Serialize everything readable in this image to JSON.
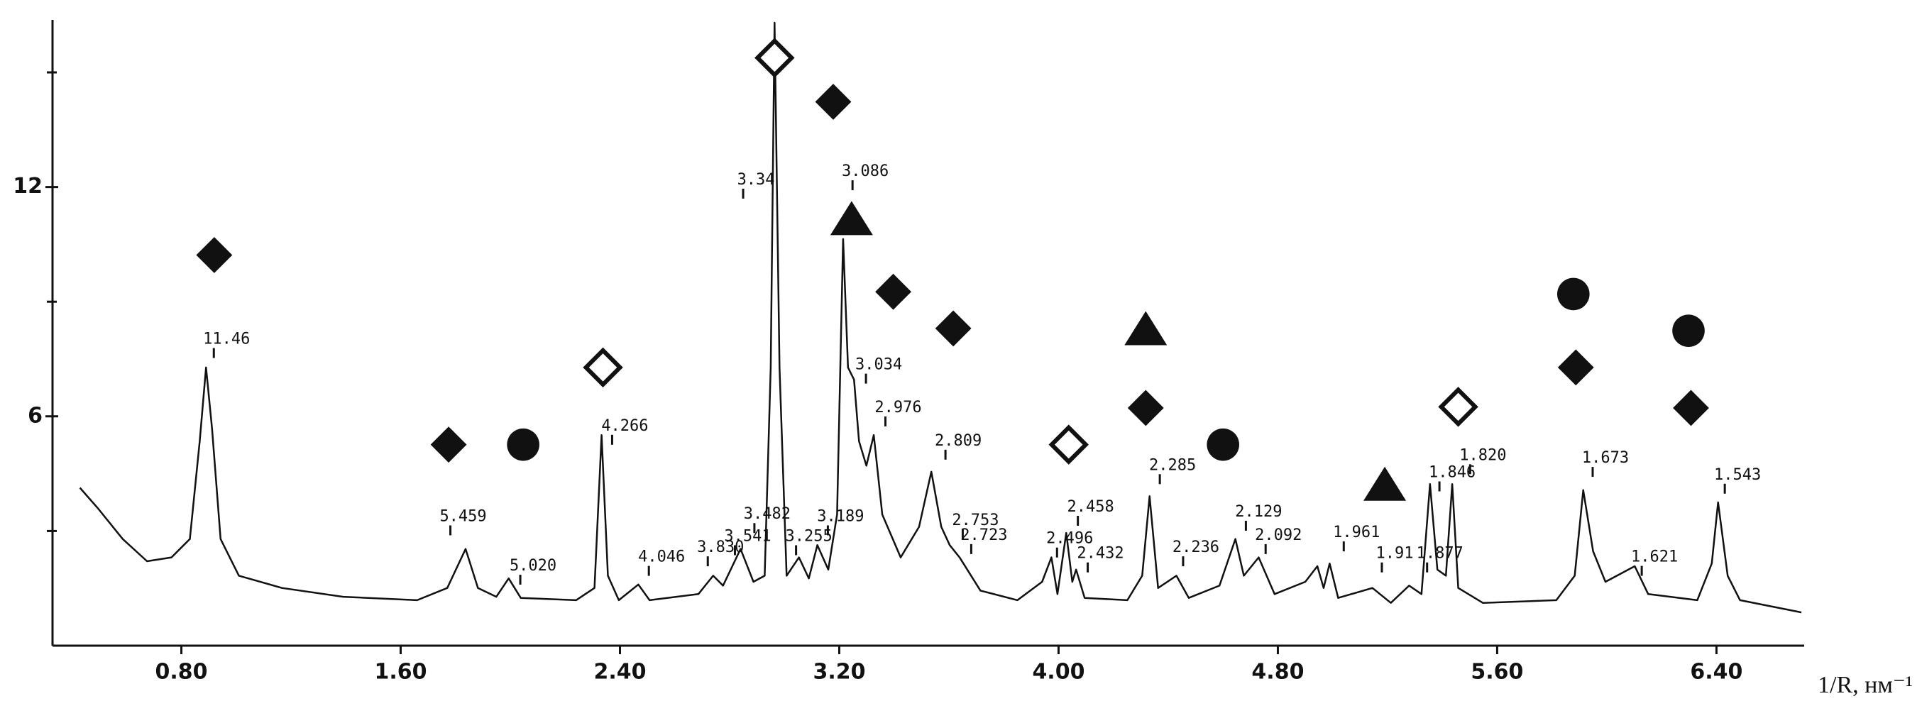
{
  "chart_data": {
    "type": "line",
    "x_label": "1/R, нм⁻¹",
    "color": "#111111",
    "xlim": [
      0.33,
      6.72
    ],
    "ylim": [
      0,
      16.3
    ],
    "xticks": [
      {
        "value": 0.8,
        "label": "0.80"
      },
      {
        "value": 1.6,
        "label": "1.60"
      },
      {
        "value": 2.4,
        "label": "2.40"
      },
      {
        "value": 3.2,
        "label": "3.20"
      },
      {
        "value": 4.0,
        "label": "4.00"
      },
      {
        "value": 4.8,
        "label": "4.80"
      },
      {
        "value": 5.6,
        "label": "5.60"
      },
      {
        "value": 6.4,
        "label": "6.40"
      }
    ],
    "yticks": [
      6,
      12
    ],
    "minor_yticks": [
      3,
      9,
      15
    ],
    "x": [
      0.43,
      0.496,
      0.586,
      0.675,
      0.764,
      0.831,
      0.867,
      0.89,
      0.912,
      0.943,
      1.01,
      1.167,
      1.39,
      1.66,
      1.77,
      1.837,
      1.882,
      1.949,
      1.994,
      2.038,
      2.24,
      2.307,
      2.333,
      2.356,
      2.396,
      2.467,
      2.508,
      2.686,
      2.74,
      2.776,
      2.81,
      2.84,
      2.887,
      2.928,
      2.95,
      2.964,
      2.982,
      3.008,
      3.053,
      3.089,
      3.12,
      3.16,
      3.192,
      3.214,
      3.232,
      3.254,
      3.272,
      3.299,
      3.326,
      3.357,
      3.424,
      3.491,
      3.536,
      3.572,
      3.603,
      3.639,
      3.715,
      3.85,
      3.94,
      3.974,
      3.996,
      4.028,
      4.05,
      4.064,
      4.095,
      4.251,
      4.305,
      4.332,
      4.363,
      4.43,
      4.475,
      4.587,
      4.645,
      4.676,
      4.73,
      4.788,
      4.9,
      4.944,
      4.967,
      4.989,
      5.02,
      5.145,
      5.212,
      5.279,
      5.324,
      5.355,
      5.382,
      5.413,
      5.436,
      5.458,
      5.548,
      5.816,
      5.883,
      5.914,
      5.95,
      5.995,
      6.102,
      6.151,
      6.33,
      6.383,
      6.406,
      6.441,
      6.486,
      6.71
    ],
    "values": [
      4.13,
      3.59,
      2.79,
      2.21,
      2.31,
      2.79,
      5.35,
      7.28,
      5.67,
      2.79,
      1.83,
      1.51,
      1.28,
      1.19,
      1.51,
      2.53,
      1.51,
      1.28,
      1.76,
      1.25,
      1.19,
      1.51,
      5.51,
      1.83,
      1.19,
      1.6,
      1.19,
      1.35,
      1.83,
      1.57,
      2.08,
      2.53,
      1.67,
      1.83,
      7.28,
      16.3,
      7.28,
      1.83,
      2.31,
      1.76,
      2.63,
      1.99,
      3.43,
      10.64,
      7.28,
      6.96,
      5.35,
      4.71,
      5.51,
      3.43,
      2.31,
      3.11,
      4.55,
      3.11,
      2.63,
      2.31,
      1.44,
      1.19,
      1.67,
      2.31,
      1.35,
      2.95,
      1.67,
      1.99,
      1.25,
      1.19,
      1.83,
      3.91,
      1.51,
      1.83,
      1.25,
      1.57,
      2.79,
      1.83,
      2.31,
      1.35,
      1.67,
      2.08,
      1.51,
      2.15,
      1.25,
      1.51,
      1.12,
      1.57,
      1.35,
      4.23,
      1.99,
      1.83,
      4.23,
      1.51,
      1.12,
      1.19,
      1.83,
      4.07,
      2.47,
      1.67,
      2.08,
      1.35,
      1.19,
      2.15,
      3.75,
      1.83,
      1.19,
      0.87
    ],
    "peak_labels": [
      {
        "text": "11.46",
        "x": 0.965,
        "y": 8.01
      },
      {
        "text": "5.459",
        "x": 1.828,
        "y": 3.37
      },
      {
        "text": "5.020",
        "x": 2.083,
        "y": 2.08
      },
      {
        "text": "4.266",
        "x": 2.418,
        "y": 5.74
      },
      {
        "text": "4.046",
        "x": 2.552,
        "y": 2.31
      },
      {
        "text": "3.830",
        "x": 2.767,
        "y": 2.56
      },
      {
        "text": "3.541",
        "x": 2.866,
        "y": 2.85
      },
      {
        "text": "3.482",
        "x": 2.937,
        "y": 3.43
      },
      {
        "text": "3.34",
        "x": 2.896,
        "y": 12.18
      },
      {
        "text": "3.255",
        "x": 3.089,
        "y": 2.85
      },
      {
        "text": "3.189",
        "x": 3.205,
        "y": 3.37
      },
      {
        "text": "3.086",
        "x": 3.295,
        "y": 12.4
      },
      {
        "text": "3.034",
        "x": 3.344,
        "y": 7.34
      },
      {
        "text": "2.976",
        "x": 3.415,
        "y": 6.22
      },
      {
        "text": "2.809",
        "x": 3.634,
        "y": 5.35
      },
      {
        "text": "2.753",
        "x": 3.697,
        "y": 3.27
      },
      {
        "text": "2.723",
        "x": 3.728,
        "y": 2.88
      },
      {
        "text": "2.496",
        "x": 4.041,
        "y": 2.79
      },
      {
        "text": "2.458",
        "x": 4.117,
        "y": 3.62
      },
      {
        "text": "2.432",
        "x": 4.153,
        "y": 2.4
      },
      {
        "text": "2.285",
        "x": 4.416,
        "y": 4.71
      },
      {
        "text": "2.236",
        "x": 4.501,
        "y": 2.56
      },
      {
        "text": "2.129",
        "x": 4.73,
        "y": 3.49
      },
      {
        "text": "2.092",
        "x": 4.802,
        "y": 2.88
      },
      {
        "text": "1.961",
        "x": 5.087,
        "y": 2.95
      },
      {
        "text": "1.91",
        "x": 5.226,
        "y": 2.4
      },
      {
        "text": "1.877",
        "x": 5.391,
        "y": 2.4
      },
      {
        "text": "1.846",
        "x": 5.436,
        "y": 4.52
      },
      {
        "text": "1.820",
        "x": 5.548,
        "y": 4.97
      },
      {
        "text": "1.673",
        "x": 5.995,
        "y": 4.9
      },
      {
        "text": "1.621",
        "x": 6.174,
        "y": 2.31
      },
      {
        "text": "1.543",
        "x": 6.477,
        "y": 4.46
      }
    ],
    "symbols": [
      {
        "shape": "diamond",
        "x": 0.92,
        "y": 10.22
      },
      {
        "shape": "diamond",
        "x": 1.775,
        "y": 5.26
      },
      {
        "shape": "circle",
        "x": 2.047,
        "y": 5.26
      },
      {
        "shape": "open-diamond",
        "x": 2.338,
        "y": 7.28
      },
      {
        "shape": "open-diamond",
        "x": 2.964,
        "y": 15.38
      },
      {
        "shape": "diamond",
        "x": 3.178,
        "y": 14.23
      },
      {
        "shape": "triangle",
        "x": 3.245,
        "y": 11.12
      },
      {
        "shape": "diamond",
        "x": 3.397,
        "y": 9.26
      },
      {
        "shape": "diamond",
        "x": 3.616,
        "y": 8.3
      },
      {
        "shape": "open-diamond",
        "x": 4.037,
        "y": 5.26
      },
      {
        "shape": "triangle",
        "x": 4.318,
        "y": 8.24
      },
      {
        "shape": "diamond",
        "x": 4.318,
        "y": 6.22
      },
      {
        "shape": "circle",
        "x": 4.6,
        "y": 5.26
      },
      {
        "shape": "triangle",
        "x": 5.19,
        "y": 4.17
      },
      {
        "shape": "open-diamond",
        "x": 5.458,
        "y": 6.25
      },
      {
        "shape": "circle",
        "x": 5.878,
        "y": 9.2
      },
      {
        "shape": "diamond",
        "x": 5.887,
        "y": 7.28
      },
      {
        "shape": "circle",
        "x": 6.298,
        "y": 8.24
      },
      {
        "shape": "diamond",
        "x": 6.307,
        "y": 6.22
      }
    ]
  }
}
